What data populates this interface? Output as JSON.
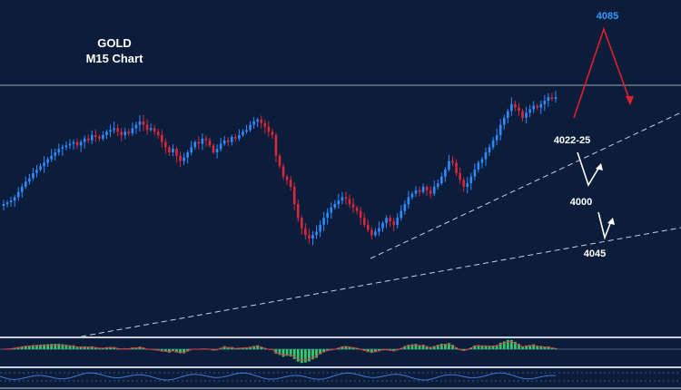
{
  "chart_data": {
    "type": "candlestick",
    "title_line1": "GOLD",
    "title_line2": "M15 Chart",
    "price_levels": {
      "target_high": "4085",
      "entry_zone": "4022-25",
      "support_1": "4000",
      "support_2": "4045"
    },
    "colors": {
      "background": "#0b1d3a",
      "bull_candle": "#2e8bff",
      "bear_candle": "#d8283a",
      "target_label": "#3399ff",
      "projection_arrow": "#e0202a",
      "bounce_arrow": "#ffffff",
      "trendline": "#c8d0dc",
      "macd_histogram": "#2ecc71",
      "macd_signal": "#e03a3a"
    },
    "closes": [
      30,
      31,
      32,
      34,
      37,
      40,
      43,
      45,
      48,
      50,
      52,
      54,
      56,
      58,
      60,
      62,
      63,
      64,
      65,
      66,
      64,
      66,
      68,
      67,
      70,
      69,
      68,
      70,
      72,
      73,
      74,
      72,
      70,
      72,
      71,
      74,
      76,
      78,
      76,
      73,
      74,
      72,
      70,
      66,
      63,
      60,
      62,
      58,
      55,
      57,
      60,
      63,
      66,
      65,
      68,
      67,
      64,
      60,
      62,
      65,
      67,
      66,
      69,
      68,
      70,
      72,
      73,
      76,
      78,
      79,
      77,
      75,
      72,
      70,
      58,
      52,
      46,
      44,
      40,
      30,
      22,
      16,
      12,
      10,
      12,
      14,
      18,
      22,
      25,
      28,
      30,
      32,
      34,
      33,
      30,
      28,
      26,
      22,
      18,
      15,
      12,
      14,
      16,
      19,
      22,
      20,
      18,
      22,
      26,
      30,
      34,
      36,
      38,
      37,
      40,
      38,
      36,
      40,
      42,
      46,
      50,
      55,
      54,
      48,
      44,
      40,
      42,
      46,
      50,
      54,
      56,
      60,
      63,
      67,
      70,
      76,
      80,
      84,
      88,
      86,
      84,
      80,
      83,
      85,
      87,
      86,
      88,
      90,
      92,
      91,
      92
    ]
  }
}
